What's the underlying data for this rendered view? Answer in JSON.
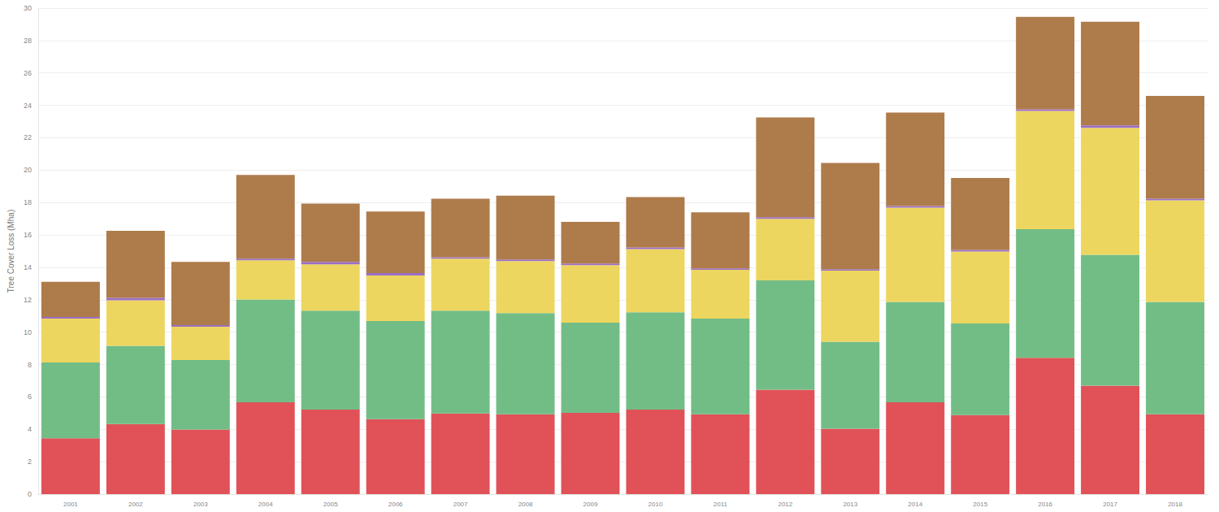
{
  "chart_data": {
    "type": "bar",
    "stacked": true,
    "grid": true,
    "y_label": "Tree Cover Loss (Mha)",
    "categories": [
      "2001",
      "2002",
      "2003",
      "2004",
      "2005",
      "2006",
      "2007",
      "2008",
      "2009",
      "2010",
      "2011",
      "2012",
      "2013",
      "2014",
      "2015",
      "2016",
      "2017",
      "2018"
    ],
    "series": [
      {
        "color": "#e05257",
        "values": [
          3.45,
          4.33,
          3.99,
          5.67,
          5.22,
          4.63,
          4.98,
          4.93,
          5.02,
          5.22,
          4.93,
          6.45,
          4.04,
          5.67,
          4.88,
          8.42,
          6.7,
          4.93
        ]
      },
      {
        "color": "#72bd86",
        "values": [
          4.68,
          4.83,
          4.29,
          6.35,
          6.11,
          6.06,
          6.35,
          6.25,
          5.57,
          6.01,
          5.91,
          6.75,
          5.37,
          6.2,
          5.66,
          7.93,
          8.08,
          6.94
        ]
      },
      {
        "color": "#edd65f",
        "values": [
          2.71,
          2.81,
          2.06,
          2.41,
          2.86,
          2.81,
          3.2,
          3.2,
          3.55,
          3.89,
          3.0,
          3.79,
          4.38,
          5.81,
          4.44,
          7.3,
          7.83,
          6.26
        ]
      },
      {
        "color": "#9b6fc4",
        "values": [
          0.1,
          0.15,
          0.1,
          0.1,
          0.15,
          0.15,
          0.1,
          0.1,
          0.1,
          0.1,
          0.1,
          0.1,
          0.1,
          0.1,
          0.1,
          0.1,
          0.15,
          0.1
        ]
      },
      {
        "color": "#ae7b4b",
        "values": [
          2.16,
          4.14,
          3.89,
          5.17,
          3.59,
          3.79,
          3.6,
          3.94,
          2.56,
          3.11,
          3.45,
          6.16,
          6.55,
          5.77,
          4.43,
          5.71,
          6.4,
          6.35
        ]
      }
    ],
    "ylim": [
      0,
      30
    ],
    "yticks": [
      0,
      2,
      4,
      6,
      8,
      10,
      12,
      14,
      16,
      18,
      20,
      22,
      24,
      26,
      28,
      30
    ]
  }
}
